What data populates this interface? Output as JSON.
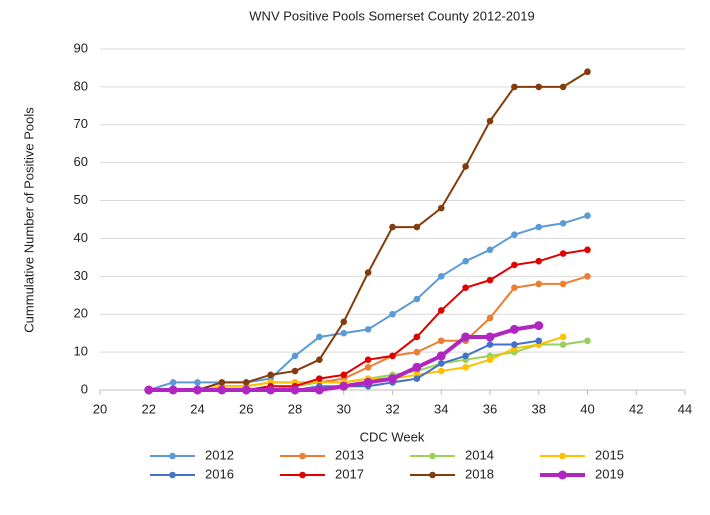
{
  "chart_data": {
    "type": "line",
    "title": "WNV Positive Pools Somerset County 2012-2019",
    "x_label": "CDC Week",
    "y_label": "Cummulative Number of Positive Pools",
    "x": [
      22,
      23,
      24,
      25,
      26,
      27,
      28,
      29,
      30,
      31,
      32,
      33,
      34,
      35,
      36,
      37,
      38,
      39,
      40
    ],
    "series": [
      {
        "name": "2012",
        "color": "#5b9bd5",
        "linewidth": 2,
        "values": [
          0,
          2,
          2,
          2,
          2,
          3,
          9,
          14,
          15,
          16,
          20,
          24,
          30,
          34,
          37,
          41,
          43,
          44,
          46
        ]
      },
      {
        "name": "2013",
        "color": "#ed7d31",
        "linewidth": 2,
        "values": [
          0,
          0,
          0,
          1,
          1,
          2,
          2,
          2,
          3,
          6,
          9,
          10,
          13,
          13,
          19,
          27,
          28,
          28,
          30
        ]
      },
      {
        "name": "2014",
        "color": "#9bd05a",
        "linewidth": 2,
        "values": [
          0,
          0,
          0,
          0,
          0,
          0,
          1,
          2,
          2,
          3,
          4,
          5,
          7,
          8,
          9,
          10,
          12,
          12,
          13
        ]
      },
      {
        "name": "2015",
        "color": "#ffc000",
        "linewidth": 2,
        "values": [
          0,
          0,
          0,
          1,
          1,
          2,
          2,
          2,
          2,
          3,
          3,
          4,
          5,
          6,
          8,
          11,
          12,
          14,
          null
        ]
      },
      {
        "name": "2016",
        "color": "#4472c4",
        "linewidth": 2,
        "values": [
          0,
          0,
          0,
          0,
          0,
          0,
          0,
          1,
          1,
          1,
          2,
          3,
          7,
          9,
          12,
          12,
          13,
          null,
          null
        ]
      },
      {
        "name": "2017",
        "color": "#e00000",
        "linewidth": 2,
        "values": [
          0,
          0,
          0,
          0,
          0,
          1,
          1,
          3,
          4,
          8,
          9,
          14,
          21,
          27,
          29,
          33,
          34,
          36,
          37
        ]
      },
      {
        "name": "2018",
        "color": "#843c0c",
        "linewidth": 2,
        "values": [
          0,
          0,
          0,
          2,
          2,
          4,
          5,
          8,
          18,
          31,
          43,
          43,
          48,
          59,
          71,
          80,
          80,
          80,
          84
        ]
      },
      {
        "name": "2019",
        "color": "#b026c0",
        "linewidth": 4,
        "values": [
          0,
          0,
          0,
          0,
          0,
          0,
          0,
          0,
          1,
          2,
          3,
          6,
          9,
          14,
          14,
          16,
          17,
          null,
          null
        ]
      }
    ],
    "xlim": [
      20,
      44
    ],
    "xticks": [
      20,
      22,
      24,
      26,
      28,
      30,
      32,
      34,
      36,
      38,
      40,
      42,
      44
    ],
    "ylim": [
      0,
      90
    ],
    "yticks": [
      0,
      10,
      20,
      30,
      40,
      50,
      60,
      70,
      80,
      90
    ],
    "grid": true,
    "legend": "bottom"
  }
}
